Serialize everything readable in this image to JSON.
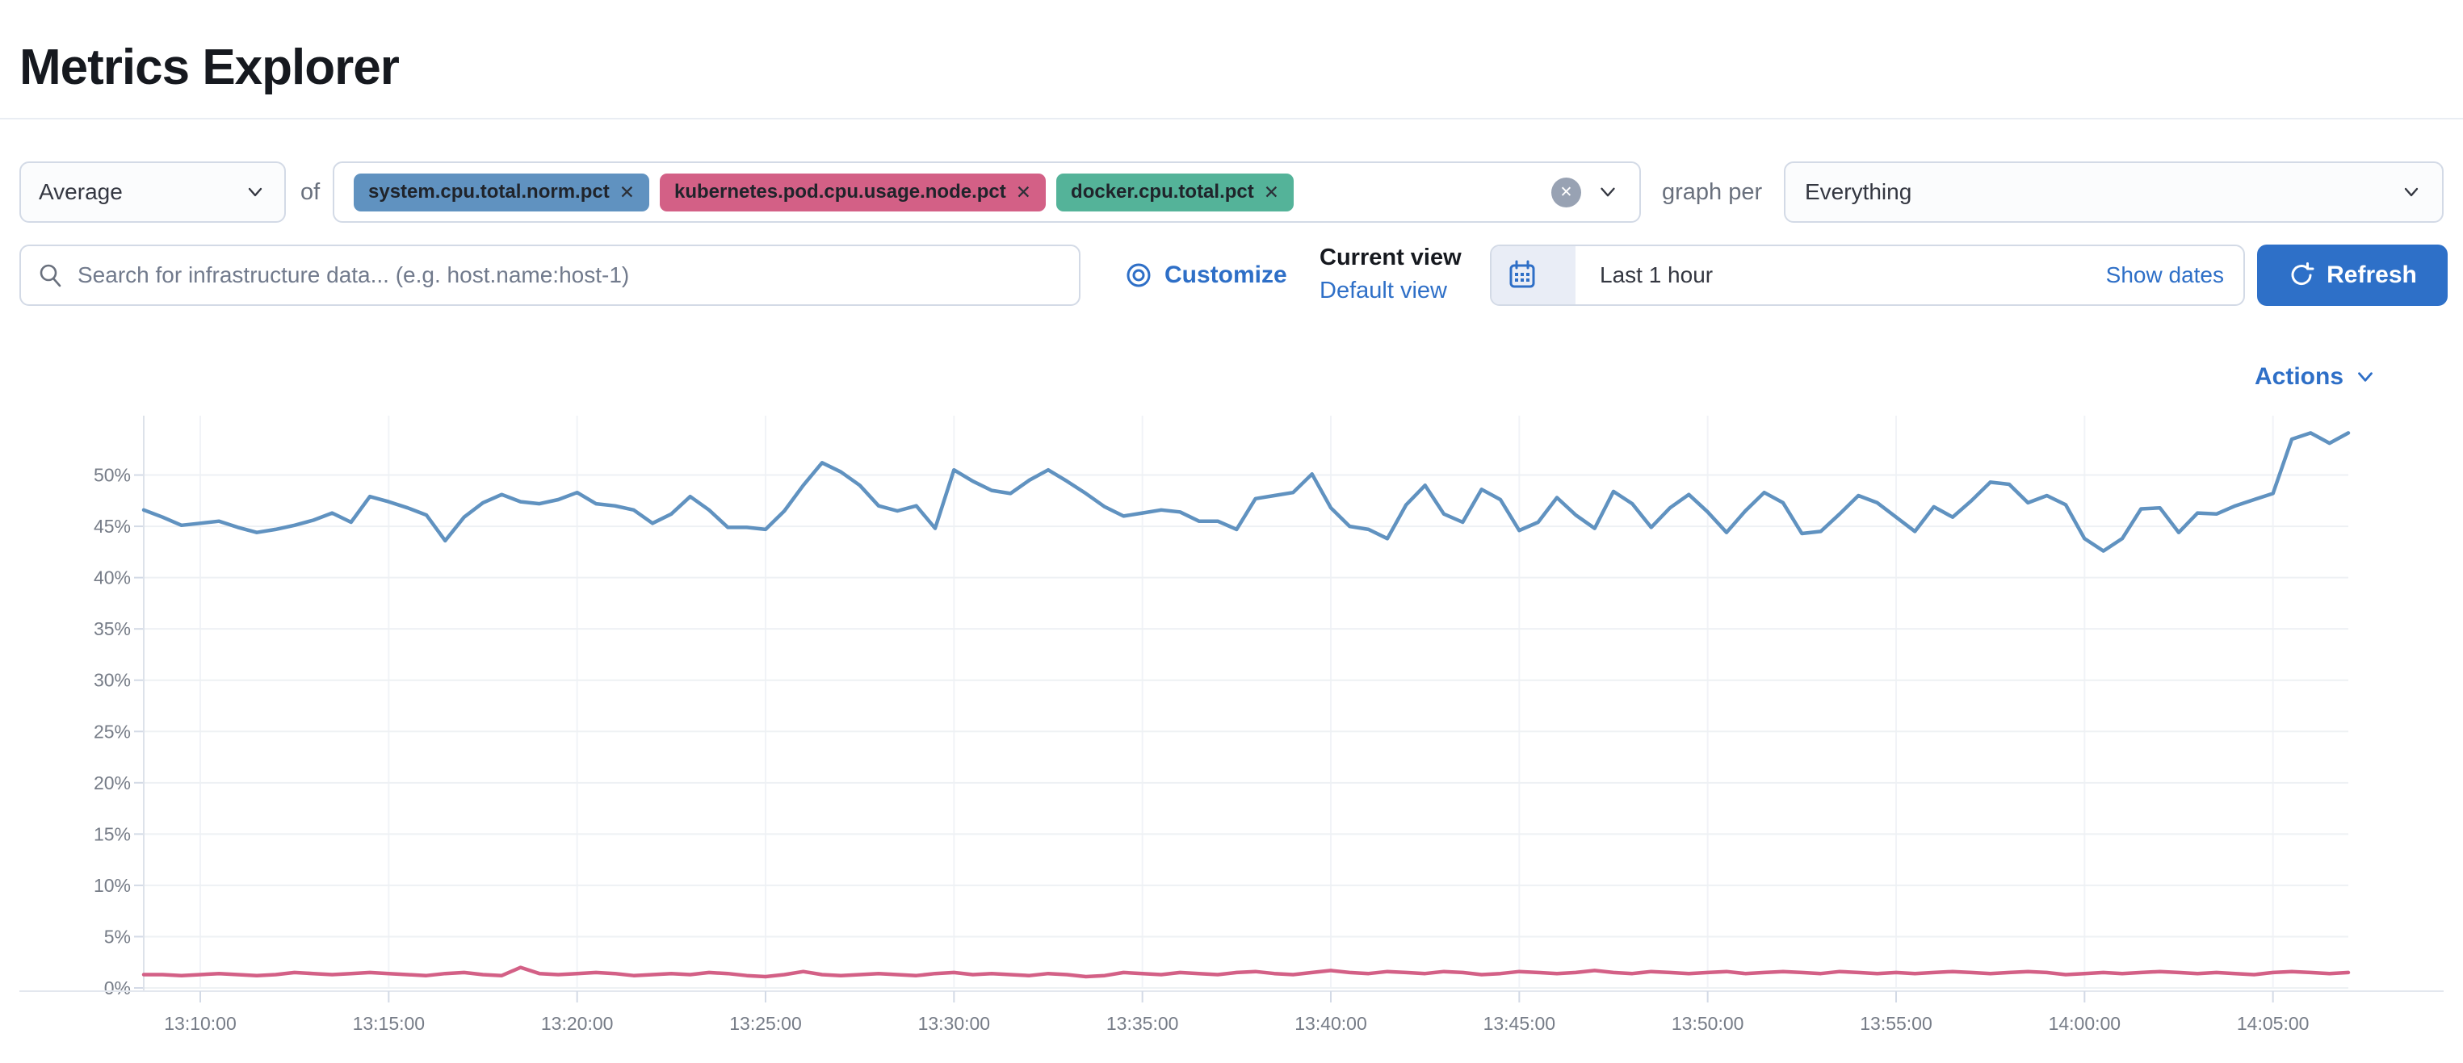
{
  "page": {
    "title": "Metrics Explorer"
  },
  "toolbar": {
    "aggregation": {
      "value": "Average"
    },
    "of_label": "of",
    "metrics": [
      {
        "label": "system.cpu.total.norm.pct",
        "color": "#6092C0"
      },
      {
        "label": "kubernetes.pod.cpu.usage.node.pct",
        "color": "#D36086"
      },
      {
        "label": "docker.cpu.total.pct",
        "color": "#54B399"
      }
    ],
    "graph_per_label": "graph per",
    "group_by": {
      "value": "Everything"
    }
  },
  "search": {
    "placeholder": "Search for infrastructure data... (e.g. host.name:host-1)"
  },
  "view_controls": {
    "customize_label": "Customize",
    "current_view_label": "Current view",
    "default_view_label": "Default view"
  },
  "time_controls": {
    "range_label": "Last 1 hour",
    "show_dates_label": "Show dates",
    "refresh_label": "Refresh"
  },
  "actions": {
    "label": "Actions"
  },
  "glyphs": {
    "remove": "✕",
    "clear": "✕"
  },
  "colors": {
    "accent": "#2E70C8",
    "link": "#2E6FC7",
    "border": "#D3DAE6",
    "text": "#1A1C21",
    "text_muted": "#69707D",
    "grid": "#EEF1F4",
    "axis": "#D3DAE6"
  },
  "chart_data": {
    "type": "line",
    "title": "",
    "xlabel": "",
    "ylabel": "",
    "grid": true,
    "legend_position": "none",
    "ylim": [
      0,
      55
    ],
    "y_ticks": [
      "0%",
      "5%",
      "10%",
      "15%",
      "20%",
      "25%",
      "30%",
      "35%",
      "40%",
      "45%",
      "50%"
    ],
    "x_start": "13:08:30",
    "x_step_sec": 30,
    "x_ticks": [
      "13:10:00",
      "13:15:00",
      "13:20:00",
      "13:25:00",
      "13:30:00",
      "13:35:00",
      "13:40:00",
      "13:45:00",
      "13:50:00",
      "13:55:00",
      "14:00:00",
      "14:05:00"
    ],
    "series": [
      {
        "name": "system.cpu.total.norm.pct",
        "color": "#6092C0",
        "values": [
          46.6,
          45.9,
          45.1,
          45.3,
          45.5,
          44.9,
          44.4,
          44.7,
          45.1,
          45.6,
          46.3,
          45.4,
          47.9,
          47.4,
          46.8,
          46.1,
          43.6,
          45.9,
          47.3,
          48.1,
          47.4,
          47.2,
          47.6,
          48.3,
          47.2,
          47.0,
          46.6,
          45.3,
          46.2,
          47.9,
          46.6,
          44.9,
          44.9,
          44.7,
          46.5,
          49.0,
          51.2,
          50.3,
          49.0,
          47.0,
          46.5,
          47.0,
          44.8,
          50.5,
          49.4,
          48.5,
          48.2,
          49.5,
          50.5,
          49.4,
          48.2,
          46.9,
          46.0,
          46.3,
          46.6,
          46.4,
          45.5,
          45.5,
          44.7,
          47.7,
          48.0,
          48.3,
          50.1,
          46.8,
          45.0,
          44.7,
          43.8,
          47.1,
          49.0,
          46.2,
          45.4,
          48.6,
          47.6,
          44.6,
          45.4,
          47.8,
          46.1,
          44.8,
          48.4,
          47.2,
          44.9,
          46.8,
          48.1,
          46.4,
          44.4,
          46.5,
          48.3,
          47.3,
          44.3,
          44.5,
          46.2,
          48.0,
          47.3,
          45.9,
          44.5,
          46.9,
          45.9,
          47.5,
          49.3,
          49.1,
          47.3,
          48.0,
          47.1,
          43.8,
          42.6,
          43.8,
          46.7,
          46.8,
          44.4,
          46.3,
          46.2,
          47.0,
          47.6,
          48.2,
          53.5,
          54.1,
          53.1,
          54.1
        ]
      },
      {
        "name": "kubernetes.pod.cpu.usage.node.pct",
        "color": "#D36086",
        "values": [
          1.3,
          1.3,
          1.2,
          1.3,
          1.4,
          1.3,
          1.2,
          1.3,
          1.5,
          1.4,
          1.3,
          1.4,
          1.5,
          1.4,
          1.3,
          1.2,
          1.4,
          1.5,
          1.3,
          1.2,
          2.0,
          1.4,
          1.3,
          1.4,
          1.5,
          1.4,
          1.2,
          1.3,
          1.4,
          1.3,
          1.5,
          1.4,
          1.2,
          1.1,
          1.3,
          1.6,
          1.3,
          1.2,
          1.3,
          1.4,
          1.3,
          1.2,
          1.4,
          1.5,
          1.3,
          1.4,
          1.3,
          1.2,
          1.4,
          1.3,
          1.1,
          1.2,
          1.5,
          1.4,
          1.3,
          1.5,
          1.4,
          1.3,
          1.5,
          1.6,
          1.4,
          1.3,
          1.5,
          1.7,
          1.5,
          1.4,
          1.6,
          1.5,
          1.4,
          1.6,
          1.5,
          1.3,
          1.4,
          1.6,
          1.5,
          1.4,
          1.5,
          1.7,
          1.5,
          1.4,
          1.6,
          1.5,
          1.4,
          1.5,
          1.6,
          1.4,
          1.5,
          1.6,
          1.5,
          1.4,
          1.6,
          1.5,
          1.4,
          1.5,
          1.4,
          1.5,
          1.6,
          1.5,
          1.4,
          1.5,
          1.6,
          1.5,
          1.3,
          1.4,
          1.5,
          1.4,
          1.5,
          1.6,
          1.5,
          1.4,
          1.5,
          1.4,
          1.3,
          1.5,
          1.6,
          1.5,
          1.4,
          1.5
        ]
      }
    ]
  }
}
